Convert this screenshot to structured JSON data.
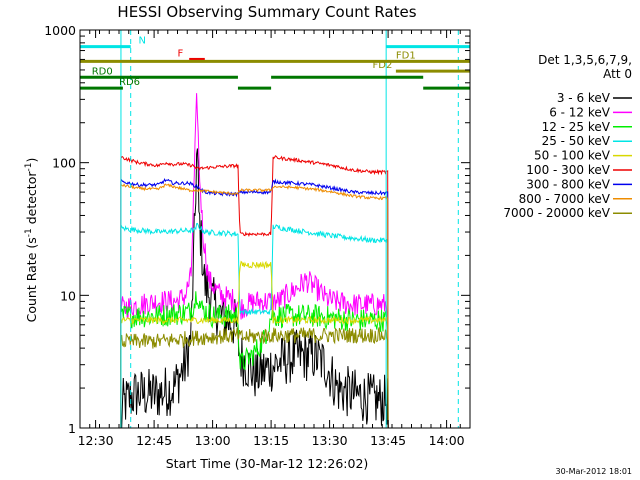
{
  "chart_data": {
    "type": "line",
    "title": "HESSI Observing Summary Count Rates",
    "xlabel": "Start Time (30-Mar-12 12:26:02)",
    "ylabel_main": "Count Rate (s",
    "ylabel_sup1": "-1",
    "ylabel_mid": " detector",
    "ylabel_sup2": "-1",
    "ylabel_end": ")",
    "x_unit": "minutes since 12:26:02",
    "xlim": [
      0,
      100
    ],
    "ylim": [
      1,
      1000
    ],
    "y_scale": "log",
    "x_ticks": [
      {
        "x": 4,
        "label": "12:30"
      },
      {
        "x": 19,
        "label": "12:45"
      },
      {
        "x": 34,
        "label": "13:00"
      },
      {
        "x": 49,
        "label": "13:15"
      },
      {
        "x": 64,
        "label": "13:30"
      },
      {
        "x": 79,
        "label": "13:45"
      },
      {
        "x": 94,
        "label": "14:00"
      }
    ],
    "y_ticks": [
      {
        "y": 1,
        "label": "1"
      },
      {
        "y": 10,
        "label": "10"
      },
      {
        "y": 100,
        "label": "100"
      },
      {
        "y": 1000,
        "label": "1000"
      }
    ],
    "legend": {
      "position": "right",
      "header_line1": "Det 1,3,5,6,7,9,",
      "header_line2": "Att 0",
      "entries": [
        {
          "label": "3 - 6 keV",
          "color": "#000000"
        },
        {
          "label": "6 - 12 keV",
          "color": "#ff00ff"
        },
        {
          "label": "12 - 25 keV",
          "color": "#00ee00"
        },
        {
          "label": "25 - 50 keV",
          "color": "#00e5e5"
        },
        {
          "label": "50 - 100 keV",
          "color": "#d8d800"
        },
        {
          "label": "100 - 300 keV",
          "color": "#ee0000"
        },
        {
          "label": "300 - 800 keV",
          "color": "#0000ee"
        },
        {
          "label": "800 - 7000 keV",
          "color": "#ee8c00"
        },
        {
          "label": "7000 - 20000 keV",
          "color": "#8c8c00"
        }
      ]
    },
    "series": [
      {
        "name": "3 - 6 keV",
        "color": "#000000",
        "noise": 0.4,
        "points": [
          [
            10.5,
            1
          ],
          [
            11,
            1.5
          ],
          [
            14,
            1.8
          ],
          [
            20,
            1.8
          ],
          [
            24,
            2
          ],
          [
            27,
            3
          ],
          [
            28.5,
            5
          ],
          [
            29.5,
            40
          ],
          [
            30,
            140
          ],
          [
            30.5,
            40
          ],
          [
            32,
            12
          ],
          [
            34,
            9
          ],
          [
            36,
            7
          ],
          [
            40,
            6
          ],
          [
            41,
            3.5
          ],
          [
            45,
            2.5
          ],
          [
            50,
            3
          ],
          [
            55,
            3.5
          ],
          [
            60,
            3.5
          ],
          [
            63,
            3
          ],
          [
            66,
            2
          ],
          [
            70,
            1.8
          ],
          [
            76,
            1.6
          ],
          [
            79,
            1.6
          ]
        ]
      },
      {
        "name": "6 - 12 keV",
        "color": "#ff00ff",
        "noise": 0.18,
        "points": [
          [
            10.5,
            8
          ],
          [
            15,
            8.5
          ],
          [
            20,
            9
          ],
          [
            25,
            9
          ],
          [
            27,
            10
          ],
          [
            28.5,
            14
          ],
          [
            29.5,
            120
          ],
          [
            30,
            340
          ],
          [
            30.5,
            100
          ],
          [
            31.5,
            30
          ],
          [
            33,
            13
          ],
          [
            36,
            10
          ],
          [
            40.5,
            9
          ],
          [
            41,
            8
          ],
          [
            45,
            9
          ],
          [
            49,
            9
          ],
          [
            51,
            9
          ],
          [
            55,
            11
          ],
          [
            58,
            13
          ],
          [
            61,
            11
          ],
          [
            63,
            9.5
          ],
          [
            65,
            9
          ],
          [
            70,
            8.5
          ],
          [
            75,
            8.5
          ],
          [
            79,
            8.5
          ]
        ]
      },
      {
        "name": "12 - 25 keV",
        "color": "#00ee00",
        "noise": 0.18,
        "points": [
          [
            10.5,
            7
          ],
          [
            20,
            7
          ],
          [
            28,
            7.5
          ],
          [
            29.5,
            9
          ],
          [
            30,
            11
          ],
          [
            31,
            8
          ],
          [
            34,
            7
          ],
          [
            40.5,
            7
          ],
          [
            41,
            3
          ],
          [
            44,
            3.5
          ],
          [
            47,
            4.5
          ],
          [
            49,
            7
          ],
          [
            60,
            7
          ],
          [
            70,
            6.5
          ],
          [
            79,
            6.5
          ]
        ]
      },
      {
        "name": "25 - 50 keV",
        "color": "#00e5e5",
        "noise": 0.04,
        "points": [
          [
            10.5,
            32
          ],
          [
            20,
            30
          ],
          [
            29.5,
            31
          ],
          [
            30,
            34
          ],
          [
            32,
            30
          ],
          [
            40.5,
            29
          ],
          [
            41,
            7.5
          ],
          [
            49,
            7.5
          ],
          [
            49.5,
            33
          ],
          [
            55,
            31
          ],
          [
            65,
            28
          ],
          [
            75,
            26
          ],
          [
            79,
            26
          ]
        ]
      },
      {
        "name": "50 - 100 keV",
        "color": "#d8d800",
        "noise": 0.05,
        "points": [
          [
            10.5,
            6.5
          ],
          [
            20,
            6.5
          ],
          [
            40.5,
            6.5
          ],
          [
            41,
            17
          ],
          [
            49,
            17
          ],
          [
            49.5,
            6.5
          ],
          [
            79,
            6.5
          ]
        ]
      },
      {
        "name": "100 - 300 keV",
        "color": "#ee0000",
        "noise": 0.025,
        "points": [
          [
            10.5,
            110
          ],
          [
            15,
            100
          ],
          [
            20,
            95
          ],
          [
            22,
            100
          ],
          [
            24,
            97
          ],
          [
            26,
            98
          ],
          [
            29,
            95
          ],
          [
            30,
            90
          ],
          [
            35,
            93
          ],
          [
            40.5,
            95
          ],
          [
            41,
            29
          ],
          [
            49,
            29
          ],
          [
            49.5,
            110
          ],
          [
            55,
            105
          ],
          [
            60,
            100
          ],
          [
            65,
            95
          ],
          [
            70,
            88
          ],
          [
            75,
            85
          ],
          [
            79,
            85
          ]
        ]
      },
      {
        "name": "300 - 800 keV",
        "color": "#0000ee",
        "noise": 0.025,
        "points": [
          [
            10.5,
            72
          ],
          [
            15,
            68
          ],
          [
            20,
            68
          ],
          [
            22,
            74
          ],
          [
            24,
            70
          ],
          [
            28,
            70
          ],
          [
            30,
            66
          ],
          [
            32,
            60
          ],
          [
            36,
            58
          ],
          [
            40.5,
            58
          ],
          [
            41,
            60
          ],
          [
            49,
            60
          ],
          [
            49.5,
            72
          ],
          [
            55,
            70
          ],
          [
            60,
            68
          ],
          [
            65,
            64
          ],
          [
            70,
            60
          ],
          [
            75,
            59
          ],
          [
            79,
            59
          ]
        ]
      },
      {
        "name": "800 - 7000 keV",
        "color": "#ee8c00",
        "noise": 0.02,
        "points": [
          [
            10.5,
            68
          ],
          [
            15,
            64
          ],
          [
            20,
            63
          ],
          [
            22,
            68
          ],
          [
            24,
            66
          ],
          [
            28,
            62
          ],
          [
            30,
            62
          ],
          [
            35,
            60
          ],
          [
            40.5,
            58
          ],
          [
            41,
            62
          ],
          [
            49,
            62
          ],
          [
            49.5,
            66
          ],
          [
            55,
            65
          ],
          [
            60,
            63
          ],
          [
            65,
            60
          ],
          [
            70,
            56
          ],
          [
            75,
            54
          ],
          [
            79,
            54
          ]
        ]
      },
      {
        "name": "7000 - 20000 keV",
        "color": "#8c8c00",
        "noise": 0.12,
        "points": [
          [
            10.5,
            4.5
          ],
          [
            20,
            4.5
          ],
          [
            30,
            4.8
          ],
          [
            40.5,
            5
          ],
          [
            41,
            4.8
          ],
          [
            49,
            5
          ],
          [
            55,
            5
          ],
          [
            65,
            5
          ],
          [
            75,
            5
          ],
          [
            79,
            5
          ]
        ]
      }
    ],
    "annotations": [
      {
        "type": "hline",
        "label": "N",
        "y": 750,
        "segments": [
          [
            0,
            13
          ],
          [
            78.5,
            100
          ]
        ],
        "color": "#00e5e5",
        "label_x": 15
      },
      {
        "type": "hline",
        "label": "F",
        "y": 600,
        "segments": [
          [
            28,
            32
          ]
        ],
        "color": "#ee0000",
        "label_x": 25
      },
      {
        "type": "hline",
        "label": "FD1",
        "y": 580,
        "segments": [
          [
            0,
            100
          ]
        ],
        "color": "#8c8c00",
        "label_x": 81
      },
      {
        "type": "hline",
        "label": "FD2",
        "y": 490,
        "segments": [
          [
            81,
            100
          ]
        ],
        "color": "#8c8c00",
        "label_x": 75
      },
      {
        "type": "hline",
        "label": "RD0",
        "y": 440,
        "segments": [
          [
            0,
            40.5
          ],
          [
            49,
            88
          ]
        ],
        "color": "#007700",
        "label_x": 3
      },
      {
        "type": "hline",
        "label": "RD6",
        "y": 365,
        "segments": [
          [
            0,
            11
          ],
          [
            40.5,
            49
          ],
          [
            88,
            100
          ]
        ],
        "color": "#007700",
        "label_x": 10
      }
    ],
    "vlines": [
      {
        "x": 10.5,
        "color": "#00e5e5",
        "dash": "none"
      },
      {
        "x": 13,
        "color": "#00e5e5",
        "dash": "dash"
      },
      {
        "x": 78.5,
        "color": "#00e5e5",
        "dash": "none"
      },
      {
        "x": 97,
        "color": "#00e5e5",
        "dash": "dash"
      }
    ],
    "grid": false
  },
  "footer": {
    "timestamp": "30-Mar-2012 18:01"
  }
}
